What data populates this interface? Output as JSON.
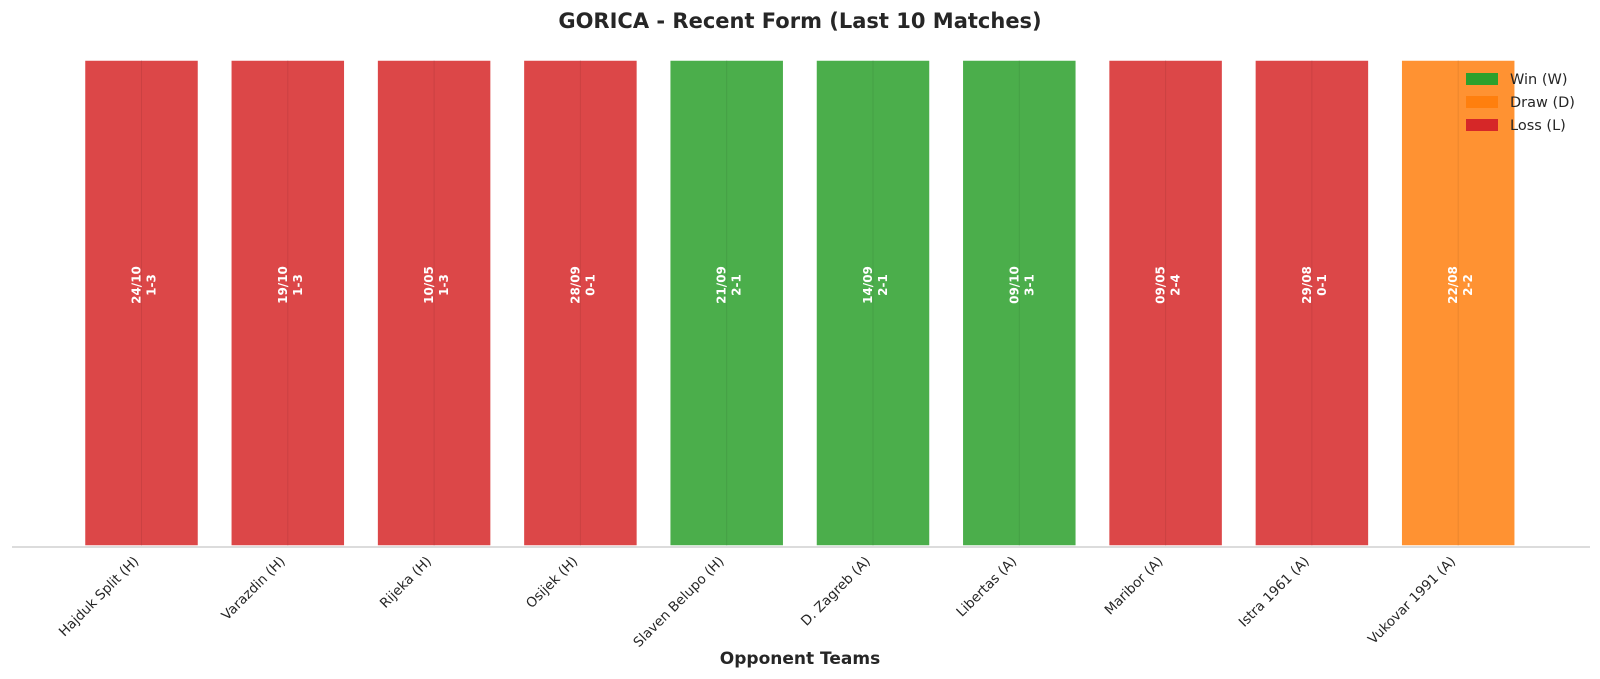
{
  "chart_data": {
    "type": "bar",
    "title": "GORICA - Recent Form (Last 10 Matches)",
    "xlabel": "Opponent Teams",
    "ylabel": "",
    "ylim": [
      0,
      1
    ],
    "grid": false,
    "legend_position": "top-right",
    "categories": [
      "Hajduk Split (H)",
      "Varazdin (H)",
      "Rijeka (H)",
      "Osijek (H)",
      "Slaven Belupo (H)",
      "D. Zagreb (A)",
      "Libertas (A)",
      "Maribor (A)",
      "Istra 1961 (A)",
      "Vukovar 1991 (A)"
    ],
    "values": [
      1,
      1,
      1,
      1,
      1,
      1,
      1,
      1,
      1,
      1
    ],
    "results": [
      "L",
      "L",
      "L",
      "L",
      "W",
      "W",
      "W",
      "L",
      "L",
      "D"
    ],
    "dates": [
      "24/10",
      "19/10",
      "10/05",
      "28/09",
      "21/09",
      "14/09",
      "09/10",
      "09/05",
      "29/08",
      "22/08"
    ],
    "scores": [
      "1-3",
      "1-3",
      "1-3",
      "0-1",
      "2-1",
      "2-1",
      "3-1",
      "2-4",
      "0-1",
      "2-2"
    ],
    "legend": [
      {
        "key": "W",
        "label": "Win (W)",
        "color": "#2ca02c"
      },
      {
        "key": "D",
        "label": "Draw (D)",
        "color": "#ff7f0e"
      },
      {
        "key": "L",
        "label": "Loss (L)",
        "color": "#d62728"
      }
    ],
    "bar_colors": {
      "W": "#2ca02c",
      "D": "#ff7f0e",
      "L": "#d62728"
    }
  }
}
